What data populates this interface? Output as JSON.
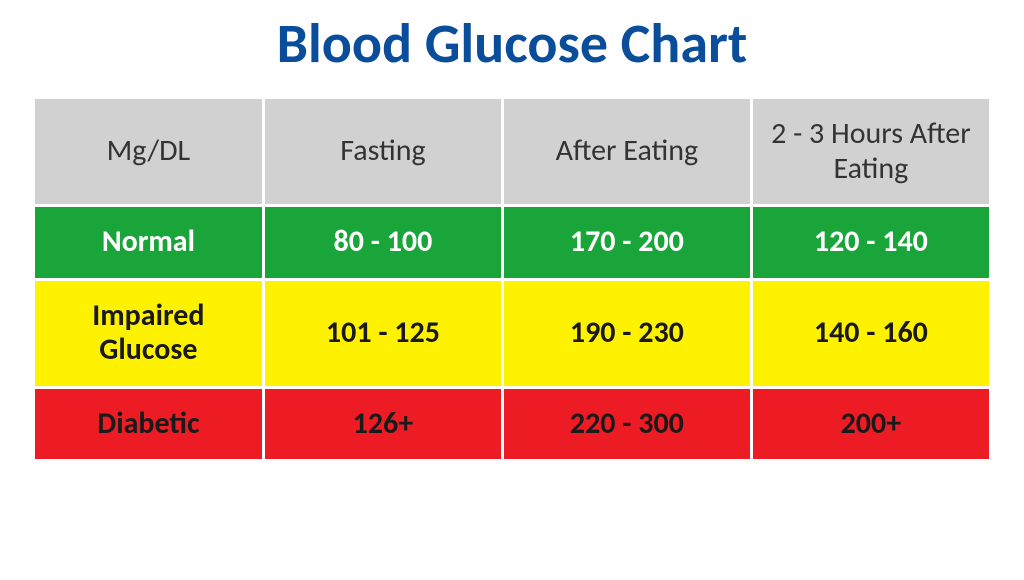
{
  "title": "Blood Glucose Chart",
  "title_color": "#0a4e9b",
  "title_fontsize": 56,
  "table": {
    "type": "table",
    "header_bg": "#d1d1d1",
    "header_text_color": "#333333",
    "cell_spacing": 3,
    "columns": [
      "Mg/DL",
      "Fasting",
      "After Eating",
      "2 - 3 Hours After Eating"
    ],
    "rows": [
      {
        "label": "Normal",
        "values": [
          "80 - 100",
          "170 - 200",
          "120 - 140"
        ],
        "bg_color": "#1aa53a",
        "text_color": "#ffffff"
      },
      {
        "label": "Impaired Glucose",
        "values": [
          "101 - 125",
          "190 - 230",
          "140 - 160"
        ],
        "bg_color": "#fff200",
        "text_color": "#1a1a1a"
      },
      {
        "label": "Diabetic",
        "values": [
          "126+",
          "220 - 300",
          "200+"
        ],
        "bg_color": "#ed1c24",
        "text_color": "#1a1a1a"
      }
    ],
    "header_fontsize": 30,
    "cell_fontsize": 30
  }
}
